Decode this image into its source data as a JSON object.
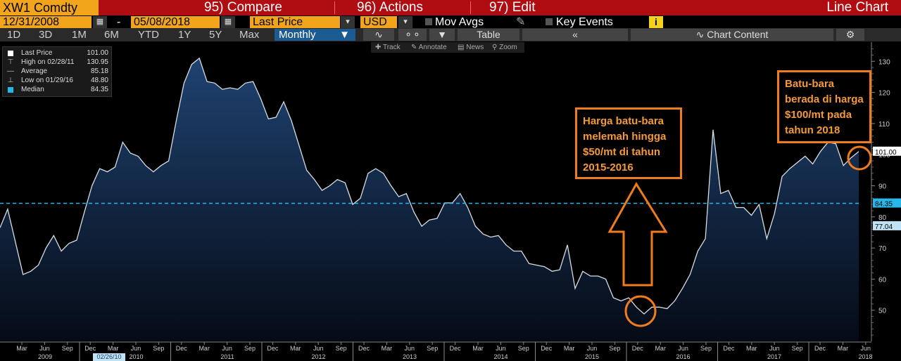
{
  "toolbar": {
    "ticker": "XW1 Comdty",
    "compare": "95) Compare",
    "actions": "96) Actions",
    "edit": "97) Edit",
    "chart_type": "Line Chart"
  },
  "settings": {
    "start_date": "12/31/2008",
    "dash": "-",
    "end_date": "05/08/2018",
    "field": "Last Price",
    "currency": "USD",
    "mov_avgs": "Mov Avgs",
    "key_events": "Key Events",
    "info": "i"
  },
  "periods": [
    "1D",
    "3D",
    "1M",
    "6M",
    "YTD",
    "1Y",
    "5Y",
    "Max"
  ],
  "period_select": "Monthly",
  "table_label": "Table",
  "collapse_label": "«",
  "chart_content": "Chart Content",
  "tools": {
    "track": "Track",
    "annotate": "Annotate",
    "news": "News",
    "zoom": "Zoom"
  },
  "legend": [
    {
      "name": "Last Price",
      "value": "101.00",
      "symbol": "white-square"
    },
    {
      "name": "High on 02/28/11",
      "value": "130.95",
      "symbol": "t-bar"
    },
    {
      "name": "Average",
      "value": "85.18",
      "symbol": "plus-line"
    },
    {
      "name": "Low on 01/29/16",
      "value": "48.80",
      "symbol": "inverted-t"
    },
    {
      "name": "Median",
      "value": "84.35",
      "symbol": "cyan-square"
    }
  ],
  "annotations": {
    "left": [
      "Harga batu-bara",
      "melemah hingga",
      "$50/mt di tahun",
      "2015-2016"
    ],
    "right": [
      "Batu-bara",
      "berada di harga",
      "$100/mt pada",
      "tahun 2018"
    ]
  },
  "colors": {
    "toolbar_bg": "#b00d13",
    "ticker_bg": "#f2a51a",
    "line": "#d8dde3",
    "area_top": "#1f4270",
    "area_bottom": "#050b16",
    "median_line": "#29b6e8",
    "annotation": "#f07c1e"
  },
  "chart_data": {
    "type": "area",
    "title": "",
    "xlabel": "",
    "ylabel": "",
    "ylim": [
      40,
      135
    ],
    "yticks": [
      50,
      60,
      70,
      80,
      90,
      100,
      110,
      120,
      130
    ],
    "yaxis_position": "right",
    "grid": false,
    "median": 84.35,
    "last_value_label": "101.00",
    "median_label": "84.35",
    "extra_label": "77.04",
    "x_month_labels": [
      "Mar",
      "Jun",
      "Sep",
      "Dec",
      "Mar",
      "Jun",
      "Sep",
      "Dec",
      "Mar",
      "Jun",
      "Sep",
      "Dec",
      "Mar",
      "Jun",
      "Sep",
      "Dec",
      "Mar",
      "Jun",
      "Sep",
      "Dec",
      "Mar",
      "Jun",
      "Sep",
      "Dec",
      "Mar",
      "Jun",
      "Sep",
      "Dec",
      "Mar",
      "Jun",
      "Sep",
      "Dec",
      "Mar",
      "Jun",
      "Sep",
      "Dec",
      "Mar",
      "Jun"
    ],
    "x_year_labels": [
      "2009",
      "2010",
      "2011",
      "2012",
      "2013",
      "2014",
      "2015",
      "2016",
      "2017",
      "2018"
    ],
    "x_highlight_date": "02/26/10",
    "series": [
      {
        "values": [
          76.5,
          82.5,
          72,
          61.5,
          62.5,
          64.5,
          70,
          74,
          69,
          71.5,
          72.5,
          81.5,
          90,
          95.5,
          94.5,
          96,
          104,
          100.5,
          99.5,
          96.5,
          94.5,
          96.5,
          98,
          111,
          123,
          129,
          131,
          123.5,
          123,
          121,
          121.5,
          121,
          123,
          123.5,
          118,
          111.5,
          112,
          117,
          111,
          103,
          95,
          92,
          88.5,
          90,
          92,
          91,
          84,
          86,
          94,
          95.5,
          94,
          90,
          86.5,
          87.5,
          81.5,
          77,
          79,
          79.5,
          84.5,
          84.5,
          87.5,
          83,
          77,
          74.5,
          73.5,
          74,
          71,
          69,
          69,
          65,
          64.5,
          64,
          62.5,
          63,
          71,
          57,
          62.5,
          61,
          61,
          60,
          54,
          53,
          54,
          51,
          48.8,
          51,
          51,
          50.5,
          53,
          57,
          61.5,
          69,
          73,
          108,
          87.5,
          88.5,
          83,
          83,
          80.5,
          84,
          73,
          81,
          93,
          95.5,
          97.5,
          99.5,
          97,
          101,
          104,
          103.5,
          96.5,
          99,
          101
        ]
      }
    ]
  }
}
